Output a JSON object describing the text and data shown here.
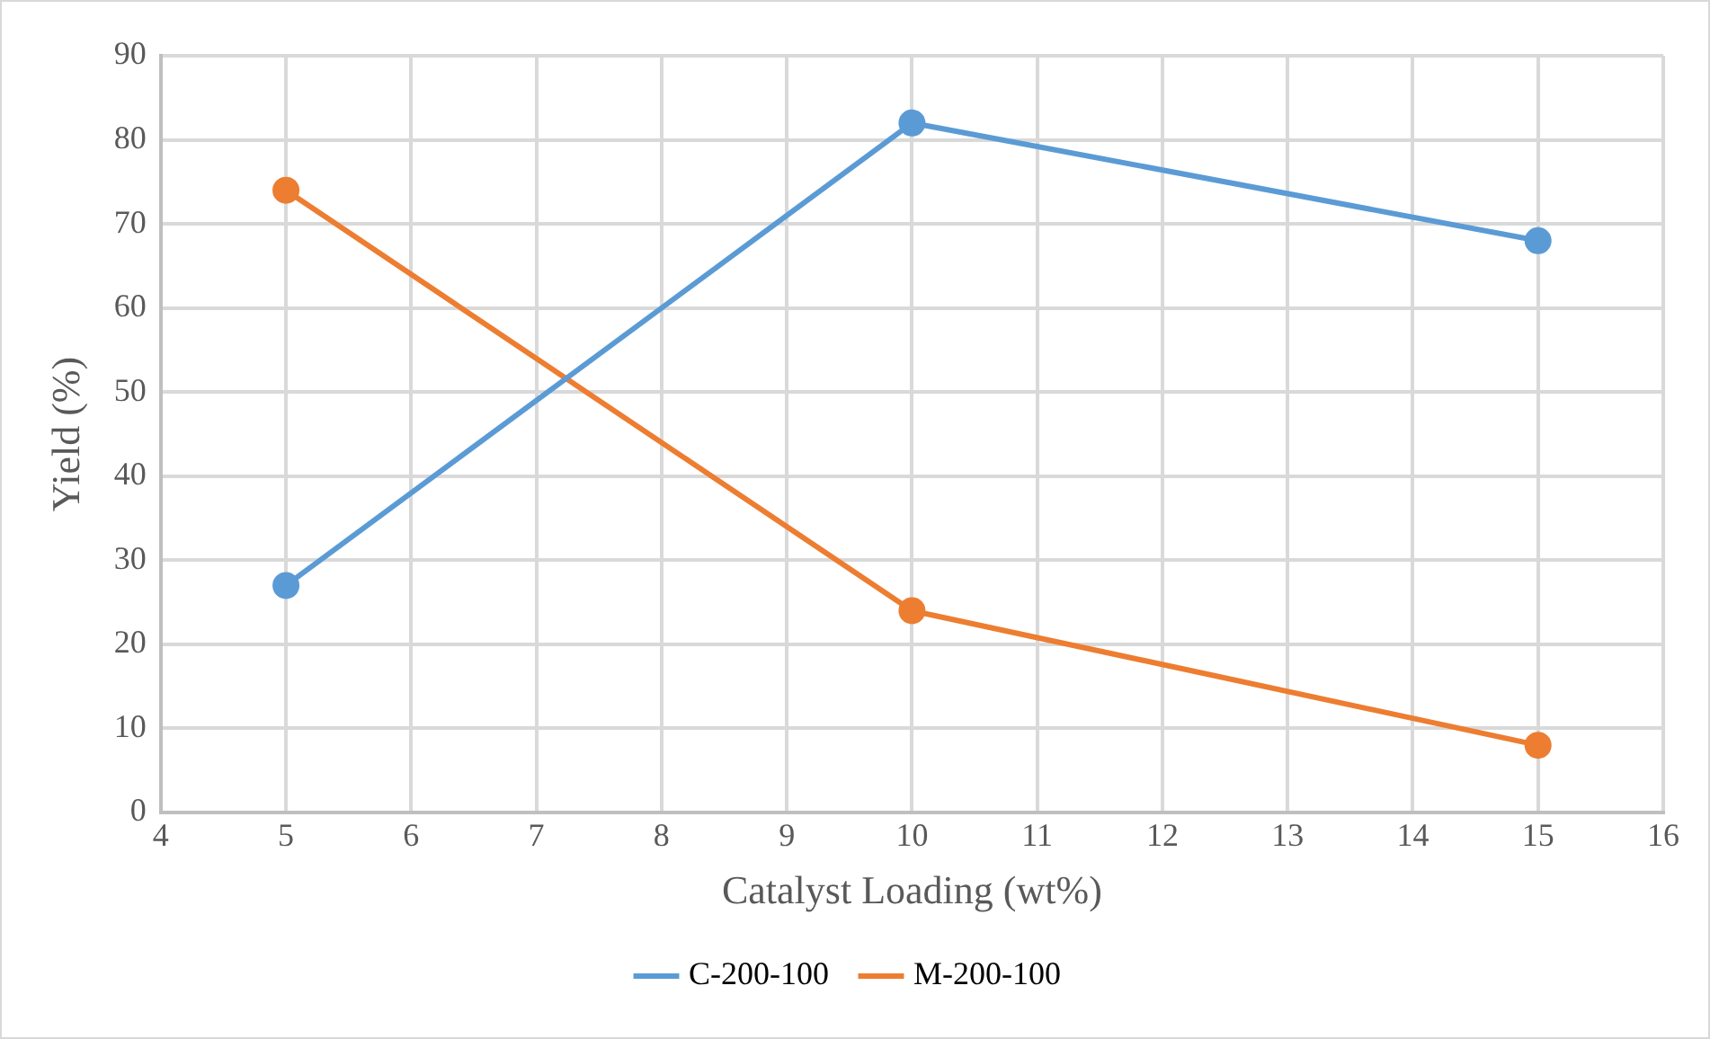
{
  "chart_data": {
    "type": "line",
    "xlabel": "Catalyst Loading (wt%)",
    "ylabel": "Yield (%)",
    "xlim": [
      4,
      16
    ],
    "xticks": [
      4,
      5,
      6,
      7,
      8,
      9,
      10,
      11,
      12,
      13,
      14,
      15,
      16
    ],
    "ylim": [
      0,
      90
    ],
    "yticks": [
      0,
      10,
      20,
      30,
      40,
      50,
      60,
      70,
      80,
      90
    ],
    "x": [
      5,
      10,
      15
    ],
    "series": [
      {
        "name": "C-200-100",
        "color": "#5b9bd5",
        "values": [
          27,
          82,
          68
        ]
      },
      {
        "name": "M-200-100",
        "color": "#ed7d31",
        "values": [
          74,
          24,
          8
        ]
      }
    ],
    "grid": true,
    "legend": "bottom",
    "marker": "circle",
    "line_style": "solid"
  }
}
